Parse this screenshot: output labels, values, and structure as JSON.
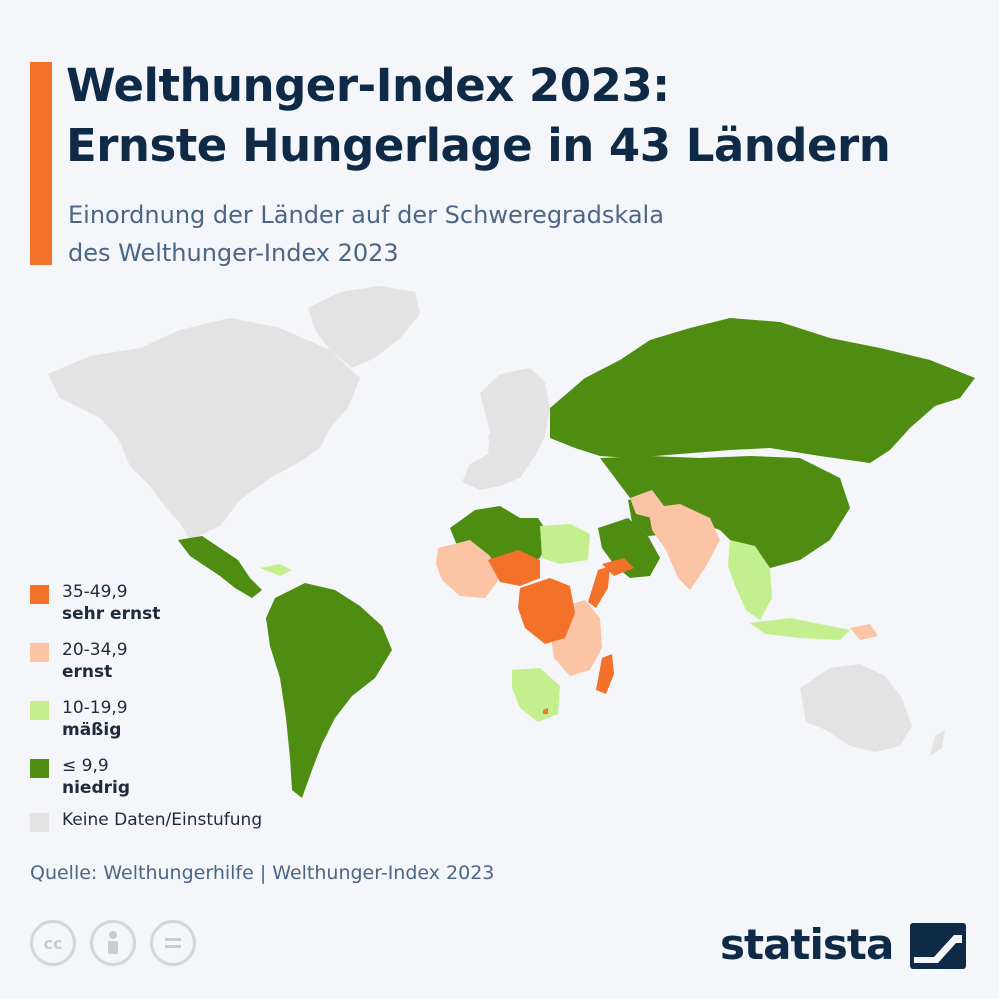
{
  "title": {
    "line1": "Welthunger-Index 2023:",
    "line2": "Ernste Hungerlage in 43 Ländern"
  },
  "subtitle": {
    "line1": "Einordnung der Länder auf der Schweregradskala",
    "line2": "des Welthunger-Index 2023"
  },
  "legend": [
    {
      "range": "35-49,9",
      "label": "sehr ernst",
      "color": "#f4712a"
    },
    {
      "range": "20-34,9",
      "label": "ernst",
      "color": "#fbc4a4"
    },
    {
      "range": "10-19,9",
      "label": "mäßig",
      "color": "#c4ef8e"
    },
    {
      "range": "≤ 9,9",
      "label": "niedrig",
      "color": "#4e8c12"
    },
    {
      "range": "",
      "label": "Keine Daten/Einstufung",
      "color": "#e3e3e3"
    }
  ],
  "colors": {
    "accent": "#f4712a",
    "title": "#0f2a46",
    "subtitle": "#4c6685",
    "background": "#f4f6f9",
    "sehr_ernst": "#f4712a",
    "ernst": "#fbc4a4",
    "maessig": "#c4ef8e",
    "niedrig": "#4e8c12",
    "keine_daten": "#e3e3e3"
  },
  "map": {
    "regions": [
      {
        "name": "Nordamerika",
        "category": "keine_daten"
      },
      {
        "name": "Grönland",
        "category": "keine_daten"
      },
      {
        "name": "Europa",
        "category": "keine_daten"
      },
      {
        "name": "Australien",
        "category": "keine_daten"
      },
      {
        "name": "Mexiko und Mittelamerika",
        "category": "niedrig"
      },
      {
        "name": "Südamerika",
        "category": "niedrig"
      },
      {
        "name": "Russland",
        "category": "niedrig"
      },
      {
        "name": "China",
        "category": "niedrig"
      },
      {
        "name": "Nordafrika",
        "category": "niedrig"
      },
      {
        "name": "Arabische Halbinsel",
        "category": "niedrig"
      },
      {
        "name": "Indien",
        "category": "ernst"
      },
      {
        "name": "Westafrika",
        "category": "ernst"
      },
      {
        "name": "Sahel",
        "category": "sehr_ernst"
      },
      {
        "name": "Zentralafrika",
        "category": "sehr_ernst"
      },
      {
        "name": "Somalia",
        "category": "sehr_ernst"
      },
      {
        "name": "Jemen",
        "category": "sehr_ernst"
      },
      {
        "name": "Madagaskar",
        "category": "sehr_ernst"
      },
      {
        "name": "Südostasien",
        "category": "maessig"
      },
      {
        "name": "Südliches Afrika",
        "category": "maessig"
      }
    ]
  },
  "source": "Quelle: Welthungerhilfe | Welthunger-Index 2023",
  "icons": [
    "cc-icon",
    "person-icon",
    "equals-icon"
  ],
  "brand": "statista"
}
